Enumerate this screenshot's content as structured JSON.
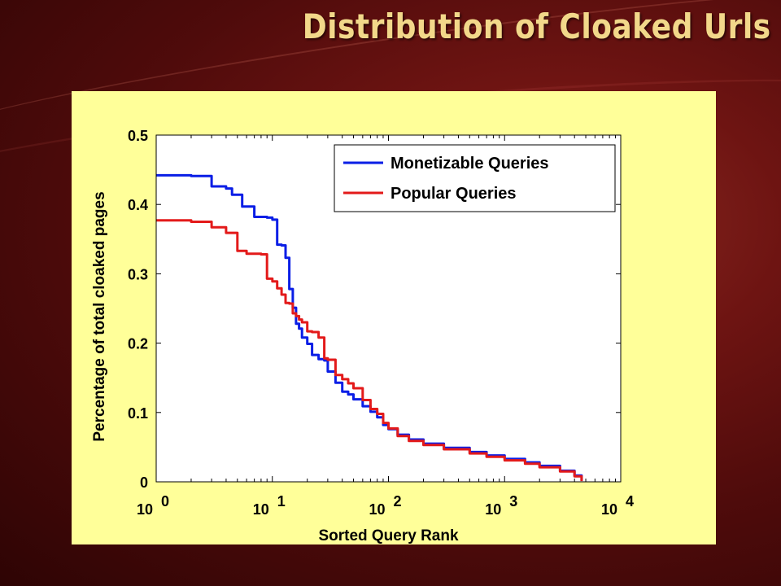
{
  "slide": {
    "title": "Distribution of Cloaked Urls"
  },
  "chart_data": {
    "type": "line",
    "xscale": "log",
    "xlim": [
      1,
      10000
    ],
    "ylim": [
      0,
      0.5
    ],
    "xlabel": "Sorted Query Rank",
    "ylabel": "Percentage of total cloaked pages",
    "yticks": [
      "0",
      "0.1",
      "0.2",
      "0.3",
      "0.4",
      "0.5"
    ],
    "xticks": [
      {
        "base": "10",
        "exp": "0"
      },
      {
        "base": "10",
        "exp": "1"
      },
      {
        "base": "10",
        "exp": "2"
      },
      {
        "base": "10",
        "exp": "3"
      },
      {
        "base": "10",
        "exp": "4"
      }
    ],
    "legend_position": "top-right",
    "grid": false,
    "series": [
      {
        "name": "Monetizable Queries",
        "color": "#0a1ee6",
        "x": [
          1,
          2,
          3,
          4,
          4.5,
          5.5,
          7,
          9,
          10,
          11,
          12,
          13,
          14,
          15,
          16,
          17,
          18,
          20,
          22,
          25,
          28,
          30,
          35,
          40,
          45,
          50,
          60,
          70,
          80,
          90,
          100,
          120,
          150,
          200,
          300,
          500,
          700,
          1000,
          1500,
          2000,
          3000,
          4000,
          4600
        ],
        "y": [
          0.442,
          0.441,
          0.426,
          0.423,
          0.414,
          0.397,
          0.382,
          0.381,
          0.378,
          0.342,
          0.341,
          0.323,
          0.278,
          0.251,
          0.228,
          0.221,
          0.208,
          0.199,
          0.183,
          0.177,
          0.175,
          0.159,
          0.143,
          0.13,
          0.126,
          0.119,
          0.109,
          0.101,
          0.093,
          0.082,
          0.076,
          0.068,
          0.061,
          0.055,
          0.049,
          0.043,
          0.038,
          0.033,
          0.028,
          0.023,
          0.016,
          0.009,
          0.002
        ]
      },
      {
        "name": "Popular Queries",
        "color": "#e31a1a",
        "x": [
          1,
          2,
          3,
          4,
          5,
          6,
          8,
          9,
          10,
          11,
          12,
          13,
          14,
          15,
          16,
          17,
          18,
          20,
          22,
          25,
          28,
          30,
          35,
          40,
          45,
          50,
          60,
          70,
          80,
          90,
          100,
          120,
          150,
          200,
          300,
          500,
          700,
          1000,
          1500,
          2000,
          3000,
          4000,
          4600
        ],
        "y": [
          0.377,
          0.375,
          0.367,
          0.359,
          0.333,
          0.329,
          0.328,
          0.293,
          0.289,
          0.279,
          0.27,
          0.258,
          0.257,
          0.243,
          0.239,
          0.234,
          0.23,
          0.217,
          0.216,
          0.208,
          0.178,
          0.176,
          0.154,
          0.148,
          0.142,
          0.135,
          0.118,
          0.105,
          0.098,
          0.085,
          0.077,
          0.066,
          0.059,
          0.053,
          0.047,
          0.041,
          0.036,
          0.031,
          0.026,
          0.021,
          0.015,
          0.008,
          0.001
        ]
      }
    ]
  }
}
